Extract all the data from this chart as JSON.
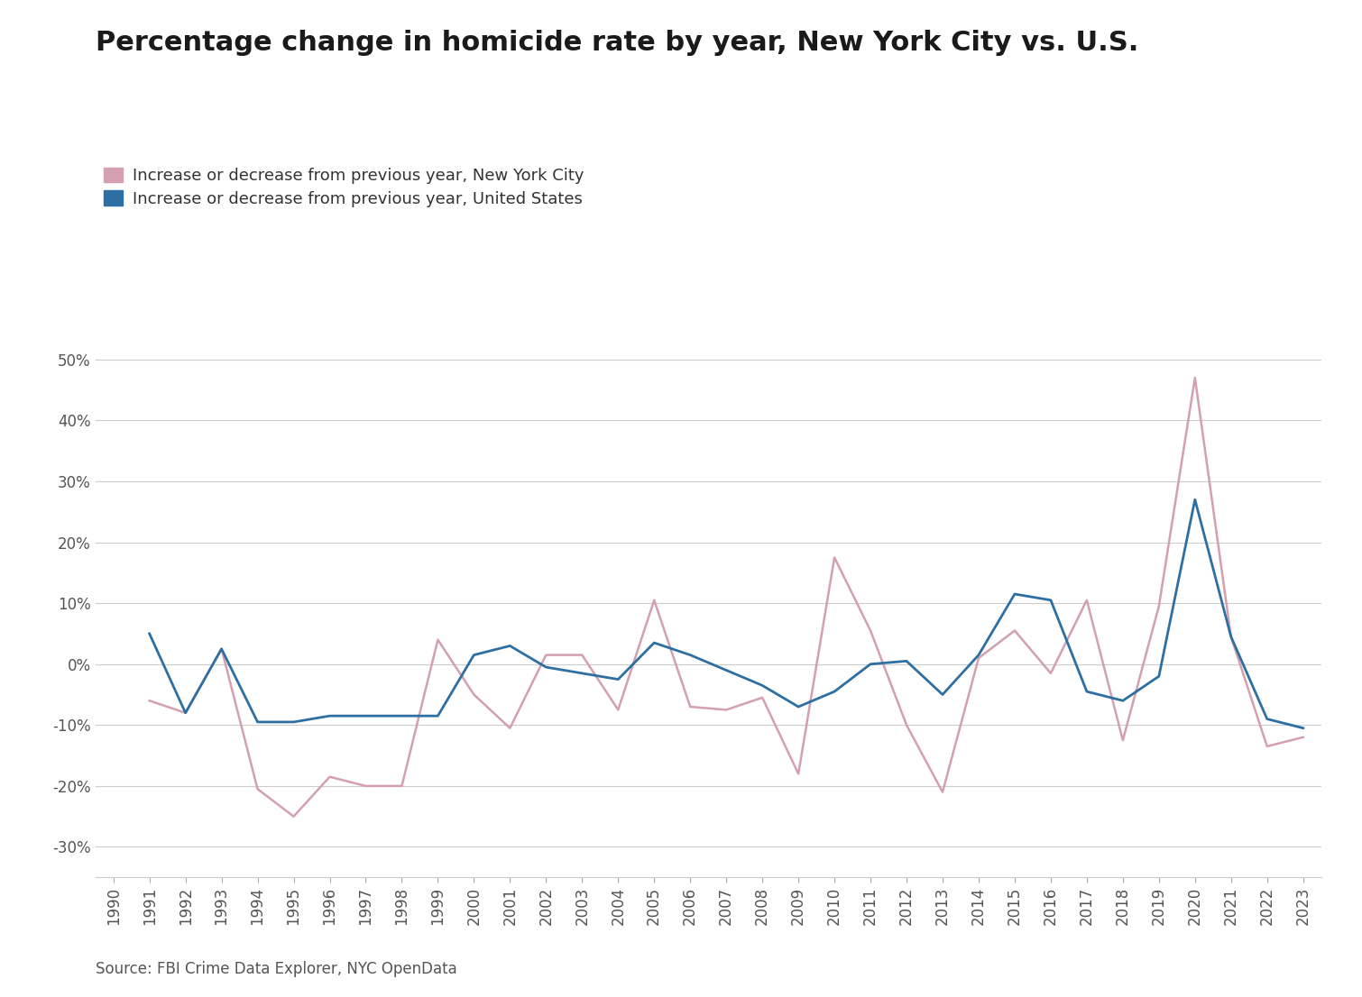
{
  "title": "Percentage change in homicide rate by year, New York City vs. U.S.",
  "source_text": "Source: FBI Crime Data Explorer, NYC OpenData",
  "legend_nyc": "Increase or decrease from previous year, New York City",
  "legend_us": "Increase or decrease from previous year, United States",
  "nyc_color": "#d4a0b0",
  "us_color": "#2e6fa3",
  "years": [
    1990,
    1991,
    1992,
    1993,
    1994,
    1995,
    1996,
    1997,
    1998,
    1999,
    2000,
    2001,
    2002,
    2003,
    2004,
    2005,
    2006,
    2007,
    2008,
    2009,
    2010,
    2011,
    2012,
    2013,
    2014,
    2015,
    2016,
    2017,
    2018,
    2019,
    2020,
    2021,
    2022,
    2023
  ],
  "nyc_values": [
    null,
    -6.0,
    -8.0,
    2.5,
    -20.5,
    -25.0,
    -18.5,
    -20.0,
    -20.0,
    4.0,
    -5.0,
    -10.5,
    1.5,
    1.5,
    -7.5,
    10.5,
    -7.0,
    -7.5,
    -5.5,
    -18.0,
    17.5,
    5.5,
    -10.0,
    -21.0,
    1.0,
    5.5,
    -1.5,
    10.5,
    -12.5,
    9.5,
    47.0,
    4.5,
    -13.5,
    -12.0
  ],
  "us_values": [
    null,
    5.0,
    -8.0,
    2.5,
    -9.5,
    -9.5,
    -8.5,
    -8.5,
    -8.5,
    -8.5,
    1.5,
    3.0,
    -0.5,
    -1.5,
    -2.5,
    3.5,
    1.5,
    -1.0,
    -3.5,
    -7.0,
    -4.5,
    0.0,
    0.5,
    -5.0,
    1.5,
    11.5,
    10.5,
    -4.5,
    -6.0,
    -2.0,
    27.0,
    4.5,
    -9.0,
    -10.5
  ],
  "ylim": [
    -35,
    55
  ],
  "yticks": [
    -30,
    -20,
    -10,
    0,
    10,
    20,
    30,
    40,
    50
  ],
  "background_color": "#ffffff",
  "grid_color": "#cccccc",
  "title_fontsize": 22,
  "legend_fontsize": 13,
  "tick_fontsize": 12,
  "source_fontsize": 12
}
